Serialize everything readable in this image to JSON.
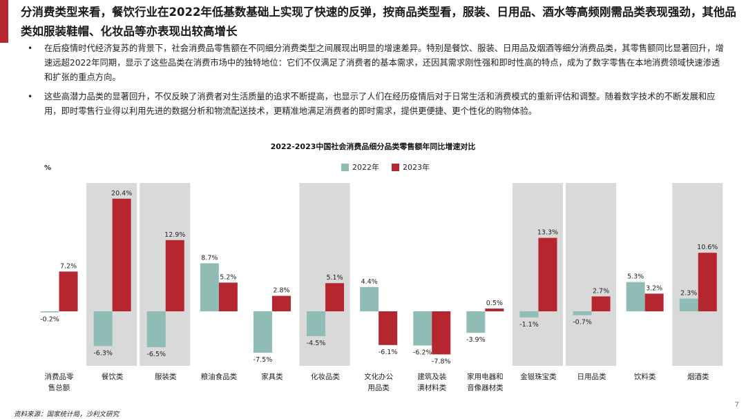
{
  "headline": "分消费类型来看，餐饮行业在2022年低基数基础上实现了快速的反弹，按商品类型看，服装、日用品、酒水等高频刚需品类表现强劲，其他品类如服装鞋帽、化妆品等亦表现出较高增长",
  "bullets": [
    {
      "marker": "•",
      "text": "在后疫情时代经济复苏的背景下，社会消费品零售额在不同细分消费类型之间展现出明显的增速差异。特别是餐饮、服装、日用品及烟酒等细分消费品类，其零售额同比显著回升，增速远超2022年同期，显示了这些品类在消费市场中的独特地位：它们不仅满足了消费者的基本需求，还因其需求刚性强和即时性高的特点，成为了数字零售在本地消费领域快速渗透和扩张的重点方向。"
    },
    {
      "marker": "•",
      "text": "这些高潜力品类的显著回升，不仅反映了消费者对生活质量的追求不断提高，也显示了人们在经历疫情后对于日常生活和消费模式的重新评估和调整。随着数字技术的不断发展和应用，即时零售行业得以利用先进的数据分析和物流配送技术，更精准地满足消费者的即时需求，提供更便捷、更个性化的购物体验。"
    }
  ],
  "source": "资料来源：国家统计局，沙利文研究",
  "page_number": "7",
  "colors": {
    "accent": "#b5262f",
    "series_2022": "#8fbdb5",
    "series_2023": "#b5262f",
    "highlight": "#d9d9d9"
  },
  "chart_data": {
    "type": "bar",
    "title": "2022-2023中国社会消费品细分品类零售额年同比增速对比",
    "unit": "%",
    "categories": [
      "消费品零售总额",
      "餐饮类",
      "服装类",
      "粮油食品类",
      "家具类",
      "化妆品类",
      "文化办公用品类",
      "建筑及装潢材料类",
      "家用电器和音像器材类",
      "金银珠宝类",
      "日用品类",
      "饮料类",
      "烟酒类"
    ],
    "category_lines": [
      [
        "消费品零",
        "售总额"
      ],
      [
        "餐饮类"
      ],
      [
        "服装类"
      ],
      [
        "粮油食品类"
      ],
      [
        "家具类"
      ],
      [
        "化妆品类"
      ],
      [
        "文化办公",
        "用品类"
      ],
      [
        "建筑及装",
        "潢材料类"
      ],
      [
        "家用电器和",
        "音像器材类"
      ],
      [
        "金银珠宝类"
      ],
      [
        "日用品类"
      ],
      [
        "饮料类"
      ],
      [
        "烟酒类"
      ]
    ],
    "highlighted": [
      false,
      true,
      true,
      false,
      false,
      true,
      false,
      false,
      false,
      true,
      true,
      false,
      true
    ],
    "series": [
      {
        "name": "2022年",
        "values": [
          -0.2,
          -6.3,
          -6.5,
          8.7,
          -7.5,
          -4.5,
          4.4,
          -6.2,
          -3.9,
          -1.1,
          -0.7,
          5.3,
          2.3
        ]
      },
      {
        "name": "2023年",
        "values": [
          7.2,
          20.4,
          12.9,
          5.2,
          2.8,
          5.1,
          -6.1,
          -7.8,
          0.5,
          13.3,
          2.7,
          3.2,
          10.6
        ]
      }
    ],
    "ylim": [
      -9,
      22
    ],
    "legend_position": "top-center"
  }
}
